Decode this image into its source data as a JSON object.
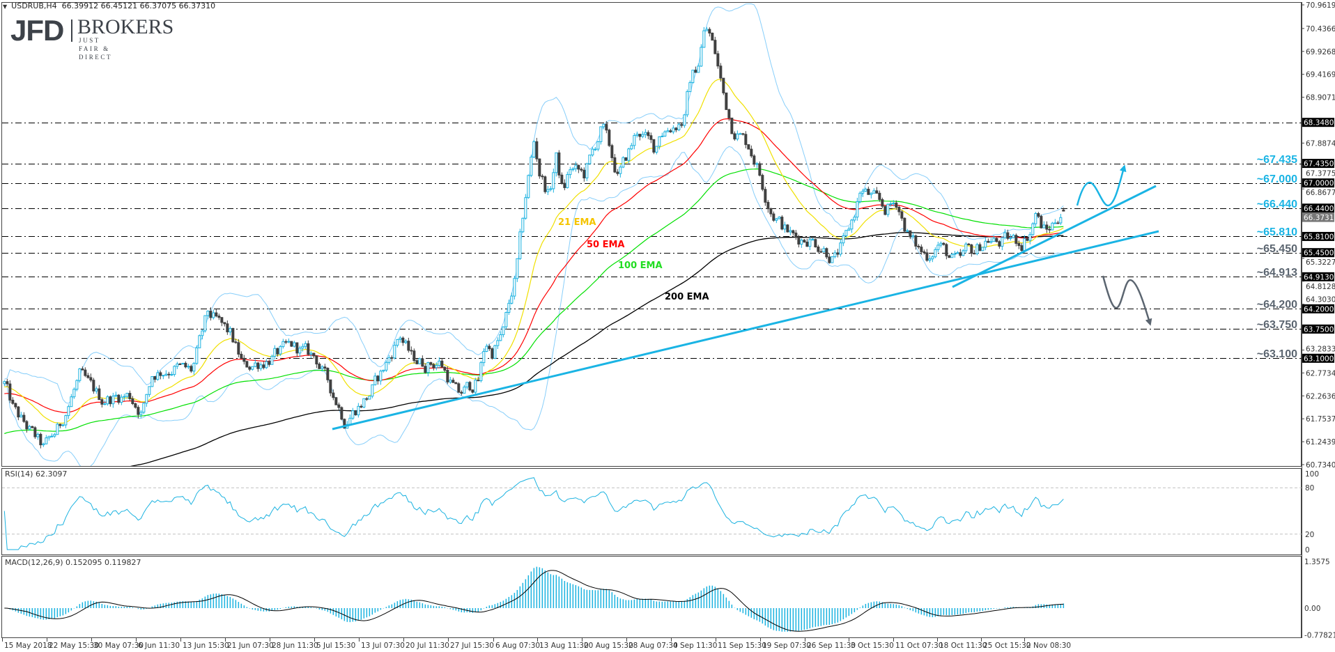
{
  "header": {
    "symbol_timeframe": "USDRUB,H4",
    "ohlc": "66.39912 66.45121 66.37075 66.37310"
  },
  "logo": {
    "brand": "JFD",
    "name": "BROKERS",
    "tagline": "JUST FAIR & DIRECT"
  },
  "colors": {
    "bull": "#1ab2e0",
    "bear": "#404040",
    "ema21": "#f0e000",
    "ema50": "#ff0000",
    "ema100": "#00e000",
    "ema200": "#000000",
    "bollinger": "#87cefa",
    "level_up": "#1ab4e4",
    "level_down": "#5b6570",
    "trendline": "#1ab4e4"
  },
  "chart_data": [
    {
      "type": "candlestick",
      "symbol": "USDRUB",
      "timeframe": "H4",
      "last_bar": {
        "open": 66.39912,
        "high": 66.45121,
        "low": 66.37075,
        "close": 66.3731
      },
      "price_axis": {
        "range": [
          60.73405,
          70.96195
        ],
        "ticks": [
          "70.96195",
          "70.43665",
          "69.92680",
          "69.41695",
          "68.90710",
          "67.88740",
          "67.37755",
          "66.86770",
          "65.32270",
          "64.81285",
          "64.30300",
          "63.28330",
          "62.77345",
          "62.26360",
          "61.75375",
          "61.24390",
          "60.73405"
        ],
        "current_price_tag": "66.37310"
      },
      "time_axis": [
        "15 May 2018",
        "22 May 15:30",
        "30 May 07:30",
        "6 Jun 11:30",
        "13 Jun 15:30",
        "21 Jun 07:30",
        "28 Jun 11:30",
        "5 Jul 15:30",
        "13 Jul 07:30",
        "20 Jul 11:30",
        "27 Jul 15:30",
        "6 Aug 07:30",
        "13 Aug 11:30",
        "20 Aug 15:30",
        "28 Aug 07:30",
        "4 Sep 11:30",
        "11 Sep 15:30",
        "19 Sep 07:30",
        "26 Sep 11:30",
        "3 Oct 15:30",
        "11 Oct 07:30",
        "18 Oct 11:30",
        "25 Oct 15:30",
        "2 Nov 08:30"
      ],
      "indicators": [
        {
          "label": "21 EMA",
          "period": 21,
          "color": "#f0e000",
          "text_color": "#f5c400"
        },
        {
          "label": "50 EMA",
          "period": 50,
          "color": "#ff0000",
          "text_color": "#ff0000"
        },
        {
          "label": "100 EMA",
          "period": 100,
          "color": "#00e000",
          "text_color": "#22dd22"
        },
        {
          "label": "200 EMA",
          "period": 200,
          "color": "#000000",
          "text_color": "#000000"
        }
      ],
      "bollinger": {
        "period": 20,
        "deviation": 2
      },
      "levels": [
        {
          "label": "",
          "price": 68.348,
          "tag": "68.34800",
          "tone": "none"
        },
        {
          "label": "~67.435",
          "price": 67.435,
          "tag": "67.43500",
          "tone": "up"
        },
        {
          "label": "~67.000",
          "price": 67.0,
          "tag": "67.00000",
          "tone": "up"
        },
        {
          "label": "~66.440",
          "price": 66.44,
          "tag": "66.44000",
          "tone": "up"
        },
        {
          "label": "~65.810",
          "price": 65.81,
          "tag": "65.81000",
          "tone": "up"
        },
        {
          "label": "~65.450",
          "price": 65.45,
          "tag": "65.45000",
          "tone": "down"
        },
        {
          "label": "~64.913",
          "price": 64.913,
          "tag": "64.91300",
          "tone": "down"
        },
        {
          "label": "~64.200",
          "price": 64.2,
          "tag": "64.20000",
          "tone": "down"
        },
        {
          "label": "~63.750",
          "price": 63.75,
          "tag": "63.75000",
          "tone": "down"
        },
        {
          "label": "~63.100",
          "price": 63.1,
          "tag": "63.10000",
          "tone": "down"
        }
      ],
      "approx_close_path": [
        [
          "2018-05-15 04:00",
          62.6
        ],
        [
          "2018-05-16 12:00",
          61.93
        ],
        [
          "2018-05-22 06:00",
          61.1
        ],
        [
          "2018-05-24 06:00",
          61.57
        ],
        [
          "2018-05-28 20:00",
          62.7
        ],
        [
          "2018-05-31 13:00",
          62.19
        ],
        [
          "2018-06-05 17:00",
          62.28
        ],
        [
          "2018-06-07 05:00",
          61.88
        ],
        [
          "2018-06-08 09:00",
          62.75
        ],
        [
          "2018-06-13 02:00",
          62.9
        ],
        [
          "2018-06-15 03:00",
          62.81
        ],
        [
          "2018-06-19 03:00",
          64.1
        ],
        [
          "2018-06-21 22:00",
          63.63
        ],
        [
          "2018-06-25 12:00",
          62.9
        ],
        [
          "2018-06-28 03:00",
          63.06
        ],
        [
          "2018-07-03 00:00",
          63.37
        ],
        [
          "2018-07-05 20:00",
          63.12
        ],
        [
          "2018-07-10 13:00",
          62.13
        ],
        [
          "2018-07-11 12:00",
          61.73
        ],
        [
          "2018-07-16 12:00",
          62.28
        ],
        [
          "2018-07-18 14:00",
          63.01
        ],
        [
          "2018-07-20 01:00",
          63.63
        ],
        [
          "2018-07-23 09:00",
          63.12
        ],
        [
          "2018-07-25 00:00",
          62.97
        ],
        [
          "2018-07-26 18:00",
          63.01
        ],
        [
          "2018-07-30 21:00",
          62.28
        ],
        [
          "2018-08-02 11:00",
          62.6
        ],
        [
          "2018-08-03 08:00",
          63.48
        ],
        [
          "2018-08-06 02:00",
          63.21
        ],
        [
          "2018-08-07 12:00",
          63.68
        ],
        [
          "2018-08-08 07:00",
          64.41
        ],
        [
          "2018-08-08 22:00",
          64.87
        ],
        [
          "2018-08-10 04:00",
          66.8
        ],
        [
          "2018-08-13 04:00",
          67.99
        ],
        [
          "2018-08-13 15:00",
          67.3
        ],
        [
          "2018-08-14 20:00",
          66.71
        ],
        [
          "2018-08-15 16:00",
          67.58
        ],
        [
          "2018-08-16 11:00",
          66.78
        ],
        [
          "2018-08-17 06:00",
          67.32
        ],
        [
          "2018-08-20 23:00",
          67.18
        ],
        [
          "2018-08-23 06:00",
          68.25
        ],
        [
          "2018-08-24 06:00",
          67.72
        ],
        [
          "2018-08-27 06:00",
          67.12
        ],
        [
          "2018-08-29 16:00",
          68.19
        ],
        [
          "2018-08-31 17:00",
          67.72
        ],
        [
          "2018-09-03 00:00",
          68.12
        ],
        [
          "2018-09-06 00:00",
          68.39
        ],
        [
          "2018-09-06 16:00",
          69.26
        ],
        [
          "2018-09-07 15:00",
          69.66
        ],
        [
          "2018-09-10 06:00",
          70.33
        ],
        [
          "2018-09-10 18:00",
          70.43
        ],
        [
          "2018-09-11 15:00",
          69.86
        ],
        [
          "2018-09-12 17:00",
          68.92
        ],
        [
          "2018-09-13 18:00",
          68.25
        ],
        [
          "2018-09-14 20:00",
          68.05
        ],
        [
          "2018-09-17 21:00",
          67.85
        ],
        [
          "2018-09-18 20:00",
          67.44
        ],
        [
          "2018-09-19 21:00",
          66.78
        ],
        [
          "2018-09-20 16:00",
          66.37
        ],
        [
          "2018-09-24 05:00",
          65.97
        ],
        [
          "2018-09-25 08:00",
          65.77
        ],
        [
          "2018-09-26 23:00",
          65.77
        ],
        [
          "2018-09-28 16:00",
          65.57
        ],
        [
          "2018-10-01 23:00",
          65.3
        ],
        [
          "2018-10-03 06:00",
          65.71
        ],
        [
          "2018-10-04 11:00",
          66.37
        ],
        [
          "2018-10-05 03:00",
          66.84
        ],
        [
          "2018-10-08 22:00",
          66.64
        ],
        [
          "2018-10-10 08:00",
          66.4
        ],
        [
          "2018-10-11 19:00",
          66.6
        ],
        [
          "2018-10-12 05:00",
          66.27
        ],
        [
          "2018-10-15 07:00",
          65.76
        ],
        [
          "2018-10-16 05:00",
          65.54
        ],
        [
          "2018-10-17 05:00",
          65.38
        ],
        [
          "2018-10-18 15:00",
          65.65
        ],
        [
          "2018-10-22 06:00",
          65.29
        ],
        [
          "2018-10-23 02:00",
          65.23
        ],
        [
          "2018-10-23 22:00",
          65.49
        ],
        [
          "2018-10-24 23:00",
          65.49
        ],
        [
          "2018-10-26 11:00",
          65.76
        ],
        [
          "2018-10-29 22:00",
          65.65
        ],
        [
          "2018-10-31 12:00",
          65.76
        ],
        [
          "2018-11-02 01:00",
          65.68
        ],
        [
          "2018-11-05 06:00",
          65.96
        ],
        [
          "2018-11-05 22:00",
          66.37
        ],
        [
          "2018-11-06 08:00",
          66.11
        ],
        [
          "2018-11-07 08:00",
          65.91
        ],
        [
          "2018-11-08 06:00",
          66.11
        ],
        [
          "2018-11-09 05:00",
          66.37
        ],
        [
          "2018-11-09 13:00",
          66.3731
        ]
      ]
    },
    {
      "type": "line",
      "label": "RSI(14) 62.3097",
      "period": 14,
      "last_value": 62.3097,
      "ylim": [
        0,
        100
      ],
      "ticks": [
        "100",
        "80",
        "20",
        "0"
      ],
      "levels": [
        80,
        20
      ]
    },
    {
      "type": "bar",
      "label": "MACD(12,26,9) 0.152095 0.119827",
      "params": [
        12,
        26,
        9
      ],
      "last_main": 0.152095,
      "last_signal": 0.119827,
      "ylim": [
        -0.778218,
        1.3575
      ],
      "ticks": [
        "1.3575",
        "0.00",
        "-0.778218"
      ]
    }
  ]
}
